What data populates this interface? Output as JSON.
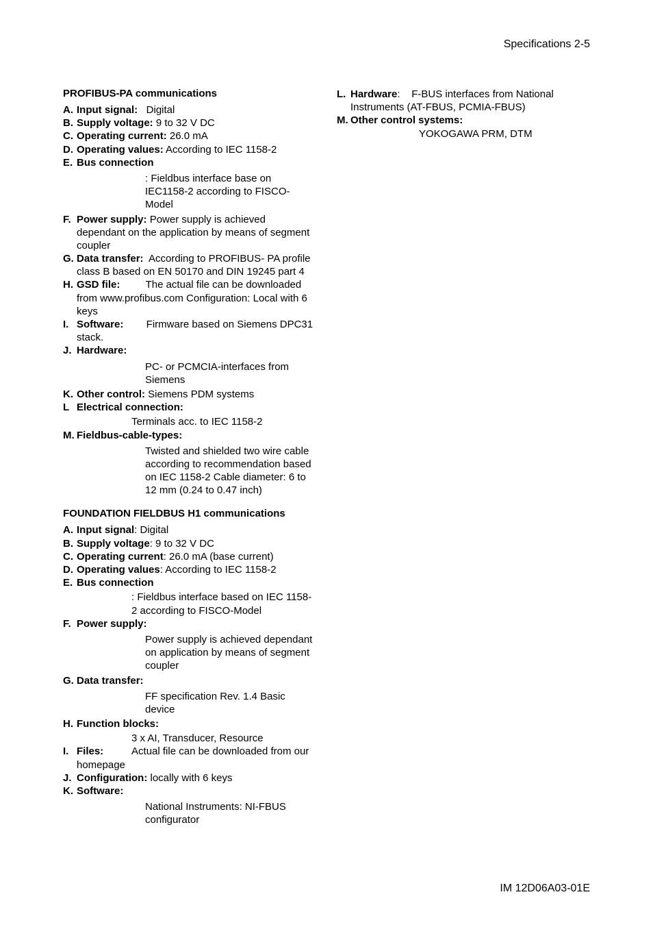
{
  "page": {
    "header_right": "Specifications   2-5",
    "footer_right": "IM 12D06A03-01E"
  },
  "profibus": {
    "title": "PROFIBUS-PA communications",
    "items": [
      {
        "marker": "A.",
        "label": "Input signal:",
        "value": "   Digital"
      },
      {
        "marker": "B.",
        "label": "Supply voltage:",
        "value": " 9 to 32 V DC"
      },
      {
        "marker": "C.",
        "label": "Operating current:",
        "value": " 26.0 mA"
      },
      {
        "marker": "D.",
        "label": "Operating values:",
        "value": " According to IEC 1158-2"
      },
      {
        "marker": "E.",
        "label": "Bus connection",
        "value": "",
        "sub": ": Fieldbus interface base on IEC1158-2 according to FISCO-Model"
      },
      {
        "marker": "F.",
        "label": "  Power supply:",
        "value": " Power supply is achieved dependant on the application by means of segment coupler"
      },
      {
        "marker": "G.",
        "label": "Data transfer:",
        "value": "  According to PROFIBUS- PA profile class B based on EN 50170 and DIN 19245 part 4"
      },
      {
        "marker": "H.",
        "label": " GSD file:",
        "value": "         The actual file can be downloaded from www.profibus.com Configuration: Local with 6 keys"
      },
      {
        "marker": "I.",
        "label": "  Software:",
        "value": "        Firmware based on Siemens DPC31 stack."
      },
      {
        "marker": "J.",
        "label": "  Hardware:",
        "value": "",
        "sub": "PC- or PCMCIA-interfaces from Siemens"
      },
      {
        "marker": "K.",
        "label": " Other control:",
        "value": " Siemens PDM systems"
      },
      {
        "marker": "L",
        "label": "   Electrical connection:",
        "value": "",
        "sub_sm": "Terminals acc. to IEC 1158-2"
      },
      {
        "marker": "M.",
        "label": " Fieldbus-cable-types:",
        "value": "",
        "sub": "Twisted and shielded two wire cable according to recommendation based on IEC 1158-2 Cable diameter: 6 to 12 mm (0.24 to 0.47 inch)"
      }
    ]
  },
  "ff": {
    "title": "FOUNDATION FIELDBUS H1 communications",
    "items": [
      {
        "marker": "A.",
        "label": " Input signal",
        "value": ": Digital"
      },
      {
        "marker": "B.",
        "label": " Supply voltage",
        "value": ": 9 to 32 V DC"
      },
      {
        "marker": "C.",
        "label": " Operating current",
        "value": ": 26.0 mA (base current)"
      },
      {
        "marker": "D.",
        "label": " Operating values",
        "value": ": According to IEC 1158-2"
      },
      {
        "marker": "E.",
        "label": " Bus connection",
        "value": "",
        "sub_sm": ": Fieldbus interface based on IEC 1158-2 according to FISCO-Model"
      },
      {
        "marker": "F.",
        "label": "  Power supply:",
        "value": "",
        "sub": "Power supply is achieved dependant on application by means of segment coupler"
      },
      {
        "marker": "G.",
        "label": " Data transfer:",
        "value": "",
        "sub": "FF specification Rev. 1.4 Basic device"
      },
      {
        "marker": "H.",
        "label": "Function blocks:",
        "value": "",
        "sub_sm": "3 x AI, Transducer, Resource",
        "nomarkerpad": true
      },
      {
        "marker": "I.",
        "label": "  Files:",
        "value": "          Actual file can be downloaded from our homepage"
      },
      {
        "marker": "J.",
        "label": "  Configuration:",
        "value": " locally with 6 keys"
      },
      {
        "marker": "K.",
        "label": "  Software:",
        "value": "",
        "sub": "National Instruments: NI-FBUS configurator"
      }
    ]
  },
  "right": {
    "items": [
      {
        "marker": "L.",
        "label": " Hardware",
        "value": ":    F-BUS interfaces from National Instruments (AT-FBUS, PCMIA-FBUS)"
      },
      {
        "marker": "M.",
        "label": " Other control systems:",
        "value": "",
        "sub": "YOKOGAWA PRM, DTM",
        "sub_sm": true
      }
    ]
  }
}
